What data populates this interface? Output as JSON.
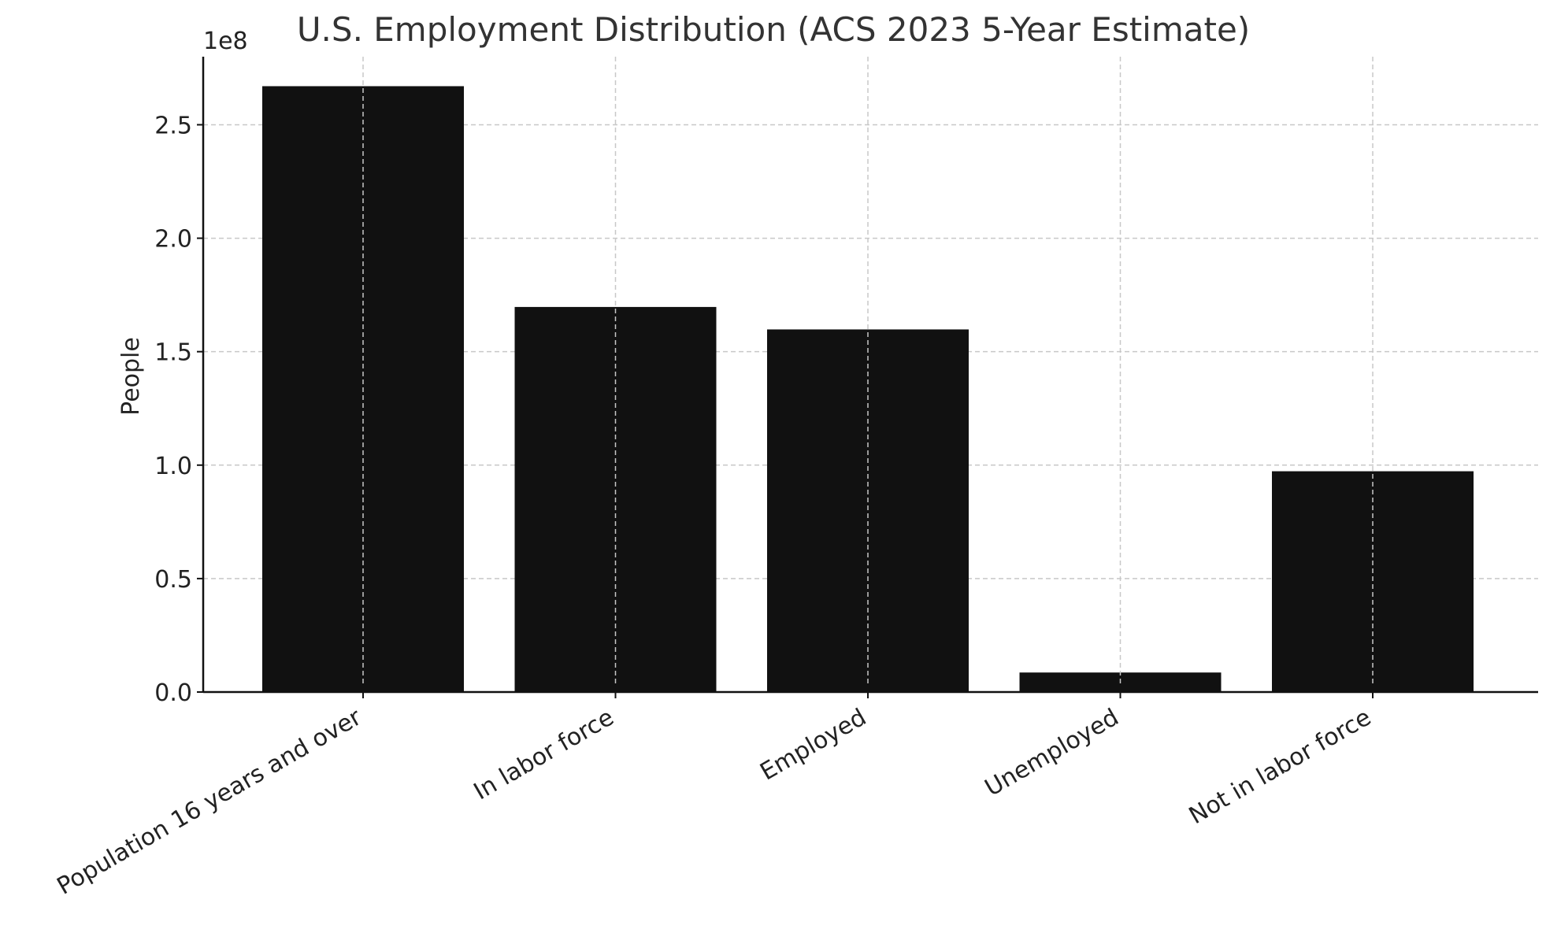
{
  "chart_data": {
    "type": "bar",
    "title": "U.S. Employment Distribution (ACS 2023 5-Year Estimate)",
    "xlabel": "",
    "ylabel": "People",
    "y_offset_label": "1e8",
    "ylim": [
      0,
      2.8
    ],
    "y_scale_factor": 100000000,
    "yticks": [
      0.0,
      0.5,
      1.0,
      1.5,
      2.0,
      2.5
    ],
    "ytick_labels": [
      "0.0",
      "0.5",
      "1.0",
      "1.5",
      "2.0",
      "2.5"
    ],
    "categories": [
      "Population 16 years and over",
      "In labor force",
      "Employed",
      "Unemployed",
      "Not in labor force"
    ],
    "values": [
      267000000,
      169700000,
      159800000,
      8600000,
      97300000
    ],
    "bar_color": "#111111",
    "grid": true
  }
}
